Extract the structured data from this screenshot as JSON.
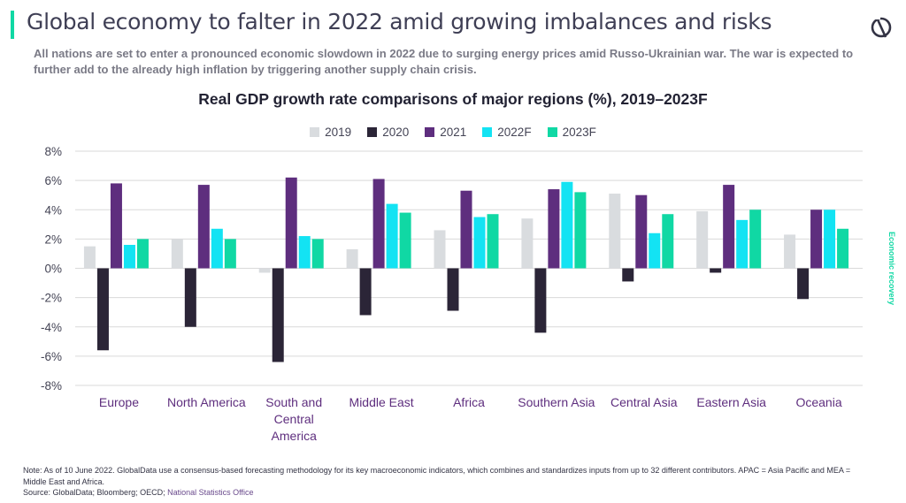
{
  "header": {
    "title": "Global economy to falter in 2022 amid growing imbalances and risks",
    "subtitle": "All nations are set to enter a pronounced economic slowdown in 2022 due to surging energy prices amid Russo-Ukrainian war. The war is expected to further add to the already high inflation by triggering another supply chain crisis.",
    "logo_icon": "globaldata-logo-icon"
  },
  "side_label": "Economic recovery",
  "footer": {
    "note": "Note: As of 10 June  2022. GlobalData use a consensus-based forecasting methodology for its key macroeconomic indicators, which combines and standardizes inputs from up to 32 different contributors. APAC = Asia Pacific and MEA = Middle East and Africa.",
    "source_prefix": "Source: GlobalData; Bloomberg; OECD; ",
    "source_link": "National Statistics Office"
  },
  "colors": {
    "accent": "#10d8a4",
    "2019": "#d9dcdf",
    "2020": "#2b2537",
    "2021": "#5e2e7e",
    "2022F": "#13e3f3",
    "2023F": "#10d8a4"
  },
  "chart_data": {
    "type": "bar",
    "title": "Real GDP growth rate comparisons of major regions (%), 2019–2023F",
    "categories": [
      "Europe",
      "North America",
      "South and Central America",
      "Middle East",
      "Africa",
      "Southern Asia",
      "Central Asia",
      "Eastern Asia",
      "Oceania"
    ],
    "series": [
      {
        "name": "2019",
        "values": [
          1.5,
          2.0,
          -0.3,
          1.3,
          2.6,
          3.4,
          5.1,
          3.9,
          2.3
        ]
      },
      {
        "name": "2020",
        "values": [
          -5.6,
          -4.0,
          -6.4,
          -3.2,
          -2.9,
          -4.4,
          -0.9,
          -0.3,
          -2.1
        ]
      },
      {
        "name": "2021",
        "values": [
          5.8,
          5.7,
          6.2,
          6.1,
          5.3,
          5.4,
          5.0,
          5.7,
          4.0
        ]
      },
      {
        "name": "2022F",
        "values": [
          1.6,
          2.7,
          2.2,
          4.4,
          3.5,
          5.9,
          2.4,
          3.3,
          4.0
        ]
      },
      {
        "name": "2023F",
        "values": [
          2.0,
          2.0,
          2.0,
          3.8,
          3.7,
          5.2,
          3.7,
          4.0,
          2.7
        ]
      }
    ],
    "ylim": [
      -8,
      8
    ],
    "yticks": [
      8,
      6,
      4,
      2,
      0,
      -2,
      -4,
      -6,
      -8
    ],
    "ytick_labels": [
      "8%",
      "6%",
      "4%",
      "2%",
      "0%",
      "-2%",
      "-4%",
      "-6%",
      "-8%"
    ],
    "grid": true,
    "legend": "top-center"
  }
}
